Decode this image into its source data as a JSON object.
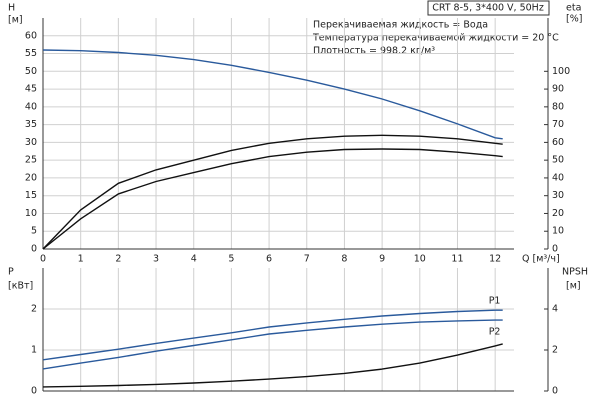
{
  "header": {
    "title": "CRT 8-5, 3*400 V, 50Hz",
    "notes": [
      "Перекачиваемая жидкость = Вода",
      "Температура перекачиваемой жидкости = 20 °C",
      "Плотность = 998.2 кг/м³"
    ]
  },
  "chart_data": [
    {
      "type": "line",
      "x_label": "Q [м³/ч]",
      "y_label": "H",
      "y_unit": "[м]",
      "y2_label": "eta",
      "y2_unit": "[%]",
      "x": [
        0,
        1,
        2,
        3,
        4,
        5,
        6,
        7,
        8,
        9,
        10,
        11,
        12,
        12.2
      ],
      "xlim": [
        0,
        12.5
      ],
      "xticks": [
        0,
        1,
        2,
        3,
        4,
        5,
        6,
        7,
        8,
        9,
        10,
        11,
        12
      ],
      "ylim": [
        0,
        65
      ],
      "yticks": [
        0,
        5,
        10,
        15,
        20,
        25,
        30,
        35,
        40,
        45,
        50,
        55,
        60
      ],
      "y2lim": [
        0,
        130
      ],
      "y2ticks": [
        0,
        10,
        20,
        30,
        40,
        50,
        60,
        70,
        80,
        90,
        100
      ],
      "grid": true,
      "series": [
        {
          "color": "#2a5a9c",
          "values": [
            56,
            55.8,
            55.3,
            54.5,
            53.3,
            51.7,
            49.7,
            47.5,
            45,
            42.2,
            38.9,
            35.2,
            31.3,
            31
          ]
        },
        {
          "color": "#111111",
          "axis": "y2",
          "values": [
            0,
            22,
            37,
            44.5,
            50,
            55.5,
            59.5,
            62,
            63.5,
            64,
            63.5,
            62,
            59.5,
            59
          ]
        },
        {
          "color": "#111111",
          "axis": "y2",
          "values": [
            0,
            17,
            31,
            38,
            43,
            48,
            52,
            54.5,
            56,
            56.3,
            56,
            54.5,
            52.5,
            52
          ]
        }
      ]
    },
    {
      "type": "line",
      "y_label": "P",
      "y_unit": "[кВт]",
      "y2_label": "NPSH",
      "y2_unit": "[м]",
      "x": [
        0,
        1,
        2,
        3,
        4,
        5,
        6,
        7,
        8,
        9,
        10,
        11,
        12,
        12.2
      ],
      "xlim": [
        0,
        12.5
      ],
      "xticks": [
        0,
        1,
        2,
        3,
        4,
        5,
        6,
        7,
        8,
        9,
        10,
        11,
        12
      ],
      "ylim": [
        0,
        3
      ],
      "yticks": [
        0,
        1,
        2
      ],
      "y2lim": [
        0,
        6
      ],
      "y2ticks": [
        0,
        2,
        4
      ],
      "grid": true,
      "series": [
        {
          "name": "P1",
          "color": "#2a5a9c",
          "values": [
            0.76,
            0.89,
            1.02,
            1.16,
            1.29,
            1.42,
            1.56,
            1.66,
            1.75,
            1.83,
            1.89,
            1.94,
            1.97,
            1.97
          ]
        },
        {
          "name": "P2",
          "color": "#2a5a9c",
          "values": [
            0.54,
            0.68,
            0.82,
            0.97,
            1.11,
            1.25,
            1.39,
            1.48,
            1.56,
            1.63,
            1.68,
            1.71,
            1.73,
            1.73
          ]
        },
        {
          "color": "#111111",
          "axis": "y2",
          "values": [
            0.2,
            0.23,
            0.27,
            0.32,
            0.39,
            0.48,
            0.58,
            0.7,
            0.86,
            1.07,
            1.36,
            1.75,
            2.2,
            2.3
          ]
        }
      ]
    }
  ]
}
